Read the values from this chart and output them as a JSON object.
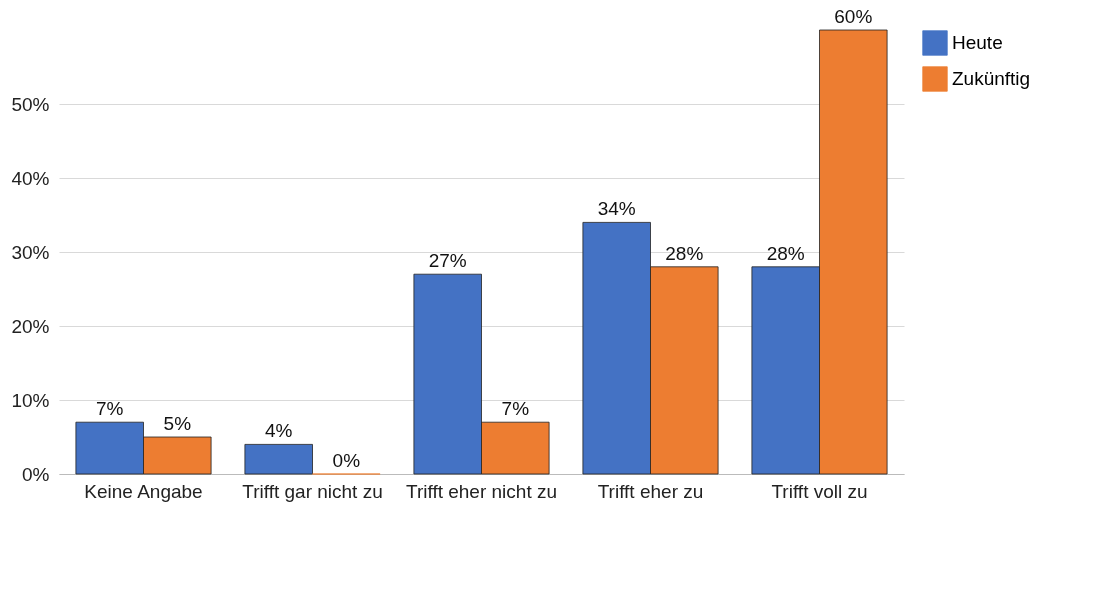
{
  "chart_data": {
    "type": "bar",
    "categories": [
      "Keine Angabe",
      "Trifft gar nicht zu",
      "Trifft eher nicht zu",
      "Trifft eher zu",
      "Trifft voll zu"
    ],
    "series": [
      {
        "name": "Heute",
        "color": "#4472c4",
        "values": [
          7,
          4,
          27,
          34,
          28
        ],
        "value_labels": [
          "7%",
          "4%",
          "27%",
          "34%",
          "28%"
        ]
      },
      {
        "name": "Zukünftig",
        "color": "#ed7d31",
        "values": [
          5,
          0,
          7,
          28,
          60
        ],
        "value_labels": [
          "5%",
          "0%",
          "7%",
          "28%",
          "60%"
        ]
      }
    ],
    "ylim": [
      0,
      60
    ],
    "yticks": [
      {
        "value": 0,
        "label": "0%"
      },
      {
        "value": 10,
        "label": "10%"
      },
      {
        "value": 20,
        "label": "20%"
      },
      {
        "value": 30,
        "label": "30%"
      },
      {
        "value": 40,
        "label": "40%"
      },
      {
        "value": 50,
        "label": "50%"
      }
    ],
    "grid": "y",
    "legend": "top right"
  }
}
